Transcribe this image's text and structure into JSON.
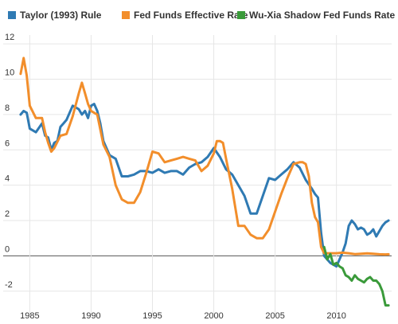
{
  "chart_data": {
    "type": "line",
    "title": "",
    "xlabel": "",
    "ylabel": "",
    "xlim": [
      1984,
      2014.5
    ],
    "ylim": [
      -3,
      12.5
    ],
    "x_ticks": [
      1985,
      1990,
      1995,
      2000,
      2005,
      2010
    ],
    "y_ticks": [
      -2,
      0,
      2,
      4,
      6,
      8,
      10,
      12
    ],
    "grid": true,
    "legend_position": "top-left",
    "series": [
      {
        "name": "Taylor (1993) Rule",
        "color": "#2f7ab3",
        "x": [
          1984.25,
          1984.5,
          1984.75,
          1985,
          1985.5,
          1986,
          1986.25,
          1986.5,
          1986.75,
          1987,
          1987.25,
          1987.5,
          1987.75,
          1988,
          1988.5,
          1989,
          1989.25,
          1989.5,
          1989.75,
          1990,
          1990.25,
          1990.5,
          1990.75,
          1991,
          1991.5,
          1992,
          1992.5,
          1993,
          1993.5,
          1994,
          1994.5,
          1995,
          1995.5,
          1996,
          1996.5,
          1997,
          1997.5,
          1998,
          1998.5,
          1999,
          1999.5,
          2000,
          2000.5,
          2001,
          2001.5,
          2002,
          2002.5,
          2003,
          2003.5,
          2004,
          2004.5,
          2005,
          2005.5,
          2006,
          2006.5,
          2007,
          2007.5,
          2008,
          2008.25,
          2008.5,
          2008.75,
          2009,
          2009.25,
          2009.5,
          2009.75,
          2010,
          2010.25,
          2010.5,
          2010.75,
          2011,
          2011.25,
          2011.5,
          2011.75,
          2012,
          2012.25,
          2012.5,
          2012.75,
          2013,
          2013.25,
          2013.5,
          2013.75,
          2014,
          2014.25
        ],
        "values": [
          8.0,
          8.2,
          8.1,
          7.2,
          7.0,
          7.5,
          6.8,
          6.7,
          6.0,
          6.4,
          6.5,
          7.3,
          7.5,
          7.7,
          8.5,
          8.3,
          8.0,
          8.2,
          7.8,
          8.5,
          8.6,
          8.2,
          7.5,
          6.5,
          5.7,
          5.5,
          4.5,
          4.5,
          4.6,
          4.8,
          4.8,
          4.7,
          4.9,
          4.7,
          4.8,
          4.8,
          4.6,
          5.0,
          5.2,
          5.3,
          5.6,
          6.1,
          5.6,
          4.9,
          4.6,
          4.0,
          3.4,
          2.4,
          2.4,
          3.4,
          4.4,
          4.3,
          4.6,
          4.9,
          5.3,
          5.0,
          4.3,
          3.8,
          3.5,
          3.3,
          1.3,
          0.0,
          -0.2,
          -0.4,
          -0.5,
          -0.6,
          -0.2,
          0.2,
          0.7,
          1.7,
          2.0,
          1.8,
          1.5,
          1.6,
          1.5,
          1.2,
          1.3,
          1.5,
          1.1,
          1.4,
          1.7,
          1.9,
          2.0
        ]
      },
      {
        "name": "Fed Funds Effective Rate",
        "color": "#f28e2b",
        "x": [
          1984.25,
          1984.5,
          1984.75,
          1985,
          1985.5,
          1986,
          1986.25,
          1986.5,
          1986.75,
          1987,
          1987.5,
          1988,
          1988.5,
          1989,
          1989.25,
          1989.5,
          1989.75,
          1990,
          1990.5,
          1991,
          1991.5,
          1992,
          1992.5,
          1993,
          1993.5,
          1994,
          1994.5,
          1995,
          1995.5,
          1996,
          1996.5,
          1997,
          1997.5,
          1998,
          1998.5,
          1999,
          1999.5,
          2000,
          2000.25,
          2000.5,
          2000.75,
          2001,
          2001.5,
          2002,
          2002.5,
          2003,
          2003.5,
          2004,
          2004.5,
          2005,
          2005.5,
          2006,
          2006.5,
          2007,
          2007.25,
          2007.5,
          2007.75,
          2008,
          2008.25,
          2008.5,
          2008.75,
          2009,
          2009.5,
          2010,
          2010.5,
          2011,
          2011.5,
          2012,
          2012.5,
          2013,
          2013.5,
          2014,
          2014.25
        ],
        "values": [
          10.3,
          11.2,
          10.2,
          8.5,
          7.8,
          7.8,
          7.0,
          6.4,
          5.9,
          6.1,
          6.8,
          6.9,
          7.9,
          9.2,
          9.8,
          9.2,
          8.6,
          8.2,
          8.0,
          6.3,
          5.6,
          4.0,
          3.2,
          3.0,
          3.0,
          3.6,
          4.7,
          5.9,
          5.8,
          5.3,
          5.4,
          5.5,
          5.6,
          5.5,
          5.4,
          4.8,
          5.1,
          5.8,
          6.5,
          6.5,
          6.4,
          5.5,
          3.8,
          1.7,
          1.7,
          1.2,
          1.0,
          1.0,
          1.5,
          2.5,
          3.5,
          4.4,
          5.2,
          5.3,
          5.3,
          5.2,
          4.5,
          3.0,
          2.2,
          1.9,
          0.5,
          0.15,
          0.15,
          0.15,
          0.18,
          0.15,
          0.1,
          0.12,
          0.14,
          0.12,
          0.09,
          0.08,
          0.09
        ]
      },
      {
        "name": "Wu-Xia Shadow Fed Funds Rate",
        "color": "#3a9a3a",
        "x": [
          2009,
          2009.25,
          2009.5,
          2009.75,
          2010,
          2010.25,
          2010.5,
          2010.75,
          2011,
          2011.25,
          2011.5,
          2011.75,
          2012,
          2012.25,
          2012.5,
          2012.75,
          2013,
          2013.25,
          2013.5,
          2013.75,
          2014,
          2014.25
        ],
        "values": [
          0.5,
          -0.2,
          0.1,
          -0.5,
          -0.4,
          -0.6,
          -0.7,
          -1.1,
          -1.2,
          -1.4,
          -1.1,
          -1.3,
          -1.4,
          -1.5,
          -1.3,
          -1.2,
          -1.4,
          -1.4,
          -1.6,
          -2.0,
          -2.8,
          -2.8
        ]
      }
    ]
  }
}
